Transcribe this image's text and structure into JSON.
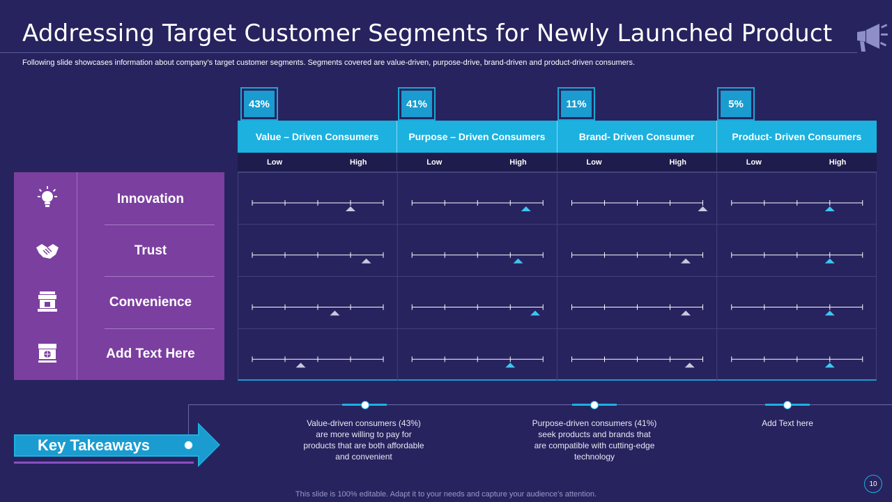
{
  "header": {
    "title": "Addressing Target Customer Segments for Newly Launched Product",
    "subtitle": "Following slide showcases information about company’s target customer segments. Segments covered are value-driven, purpose-drive, brand-driven and product-driven consumers."
  },
  "segments": [
    {
      "percent": "43%",
      "name": "Value – Driven Consumers",
      "low": "Low",
      "high": "High"
    },
    {
      "percent": "41%",
      "name": "Purpose – Driven Consumers",
      "low": "Low",
      "high": "High"
    },
    {
      "percent": "11%",
      "name": "Brand- Driven Consumer",
      "low": "Low",
      "high": "High"
    },
    {
      "percent": "5%",
      "name": "Product- Driven Consumers",
      "low": "Low",
      "high": "High"
    }
  ],
  "attributes": [
    {
      "label": "Innovation",
      "icon": "lightbulb-icon"
    },
    {
      "label": "Trust",
      "icon": "handshake-icon"
    },
    {
      "label": "Convenience",
      "icon": "storefront-icon"
    },
    {
      "label": "Add Text Here",
      "icon": "shop-icon"
    }
  ],
  "ratings": [
    [
      {
        "pos": 0.75,
        "color": "#c8c8e0"
      },
      {
        "pos": 0.87,
        "color": "#3fc6f0"
      },
      {
        "pos": 1.0,
        "color": "#c8c8e0"
      },
      {
        "pos": 0.75,
        "color": "#3fc6f0"
      }
    ],
    [
      {
        "pos": 0.87,
        "color": "#c8c8e0"
      },
      {
        "pos": 0.81,
        "color": "#3fc6f0"
      },
      {
        "pos": 0.87,
        "color": "#c8c8e0"
      },
      {
        "pos": 0.75,
        "color": "#3fc6f0"
      }
    ],
    [
      {
        "pos": 0.63,
        "color": "#c8c8e0"
      },
      {
        "pos": 0.94,
        "color": "#3fc6f0"
      },
      {
        "pos": 0.87,
        "color": "#c8c8e0"
      },
      {
        "pos": 0.75,
        "color": "#3fc6f0"
      }
    ],
    [
      {
        "pos": 0.37,
        "color": "#c8c8e0"
      },
      {
        "pos": 0.75,
        "color": "#3fc6f0"
      },
      {
        "pos": 0.9,
        "color": "#c8c8e0"
      },
      {
        "pos": 0.75,
        "color": "#3fc6f0"
      }
    ]
  ],
  "key_takeaways": {
    "label": "Key  Takeaways",
    "items": [
      "Value-driven  consumers (43%) are more willing to pay for products that are both affordable  and convenient",
      "Purpose-driven  consumers (41%) seek products and brands that are compatible with cutting-edge technology",
      "Add Text here"
    ]
  },
  "footer": {
    "note": "This slide is 100% editable. Adapt it to your needs and capture your audience’s attention.",
    "page": "10"
  },
  "colors": {
    "background": "#27235e",
    "accent": "#1cb1df",
    "panel": "#7b3fa0"
  }
}
